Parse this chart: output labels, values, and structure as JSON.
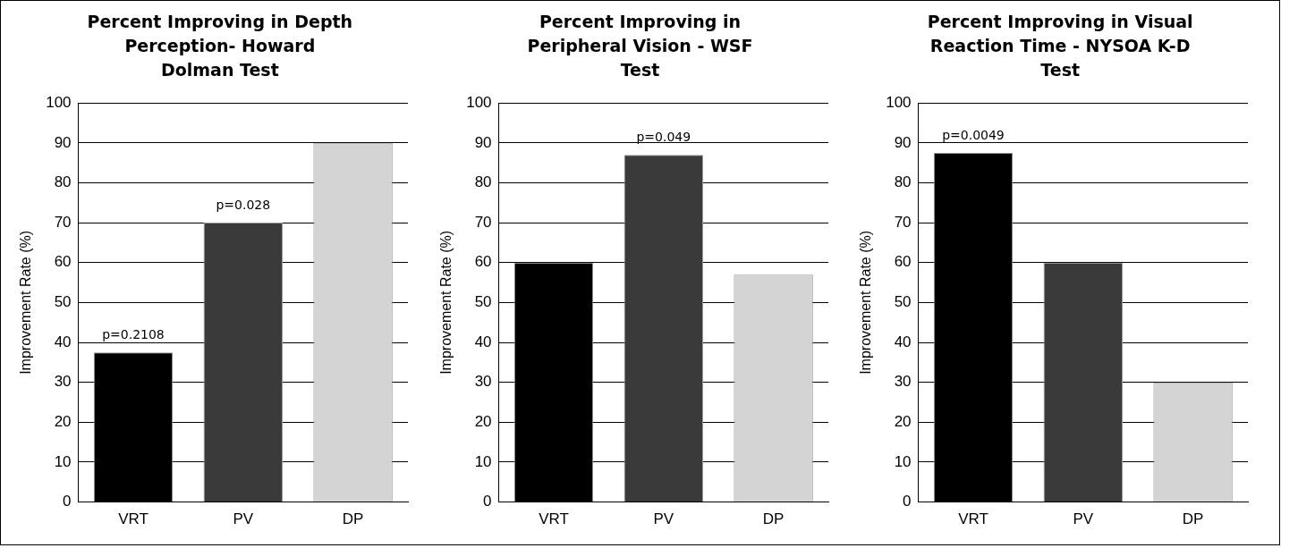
{
  "chart_data": [
    {
      "type": "bar",
      "title": "Percent Improving in Depth Perception- Howard Dolman Test",
      "ylabel": "Improvement Rate (%)",
      "categories": [
        "VRT",
        "PV",
        "DP"
      ],
      "values": [
        37.5,
        70,
        90
      ],
      "colors": [
        "#000000",
        "#3a3a3a",
        "#d4d4d4"
      ],
      "ylim": [
        0,
        100
      ],
      "yticks": [
        0,
        10,
        20,
        30,
        40,
        50,
        60,
        70,
        80,
        90,
        100
      ],
      "grid": "y",
      "legend": false,
      "annotations": [
        {
          "text": "p=0.2108",
          "x": "VRT",
          "y": 37.5
        },
        {
          "text": "p=0.028",
          "x": "PV",
          "y": 70
        }
      ]
    },
    {
      "type": "bar",
      "title": "Percent Improving in Peripheral Vision - WSF Test",
      "ylabel": "Improvement Rate (%)",
      "categories": [
        "VRT",
        "PV",
        "DP"
      ],
      "values": [
        60,
        87,
        57
      ],
      "colors": [
        "#000000",
        "#3a3a3a",
        "#d4d4d4"
      ],
      "ylim": [
        0,
        100
      ],
      "yticks": [
        0,
        10,
        20,
        30,
        40,
        50,
        60,
        70,
        80,
        90,
        100
      ],
      "grid": "y",
      "legend": false,
      "annotations": [
        {
          "text": "p=0.049",
          "x": "PV",
          "y": 87
        }
      ]
    },
    {
      "type": "bar",
      "title": "Percent Improving in Visual Reaction Time - NYSOA K-D Test",
      "ylabel": "Improvement Rate (%)",
      "categories": [
        "VRT",
        "PV",
        "DP"
      ],
      "values": [
        87.5,
        60,
        30
      ],
      "colors": [
        "#000000",
        "#3a3a3a",
        "#d4d4d4"
      ],
      "ylim": [
        0,
        100
      ],
      "yticks": [
        0,
        10,
        20,
        30,
        40,
        50,
        60,
        70,
        80,
        90,
        100
      ],
      "grid": "y",
      "legend": false,
      "annotations": [
        {
          "text": "p=0.0049",
          "x": "VRT",
          "y": 87.5
        }
      ]
    }
  ]
}
